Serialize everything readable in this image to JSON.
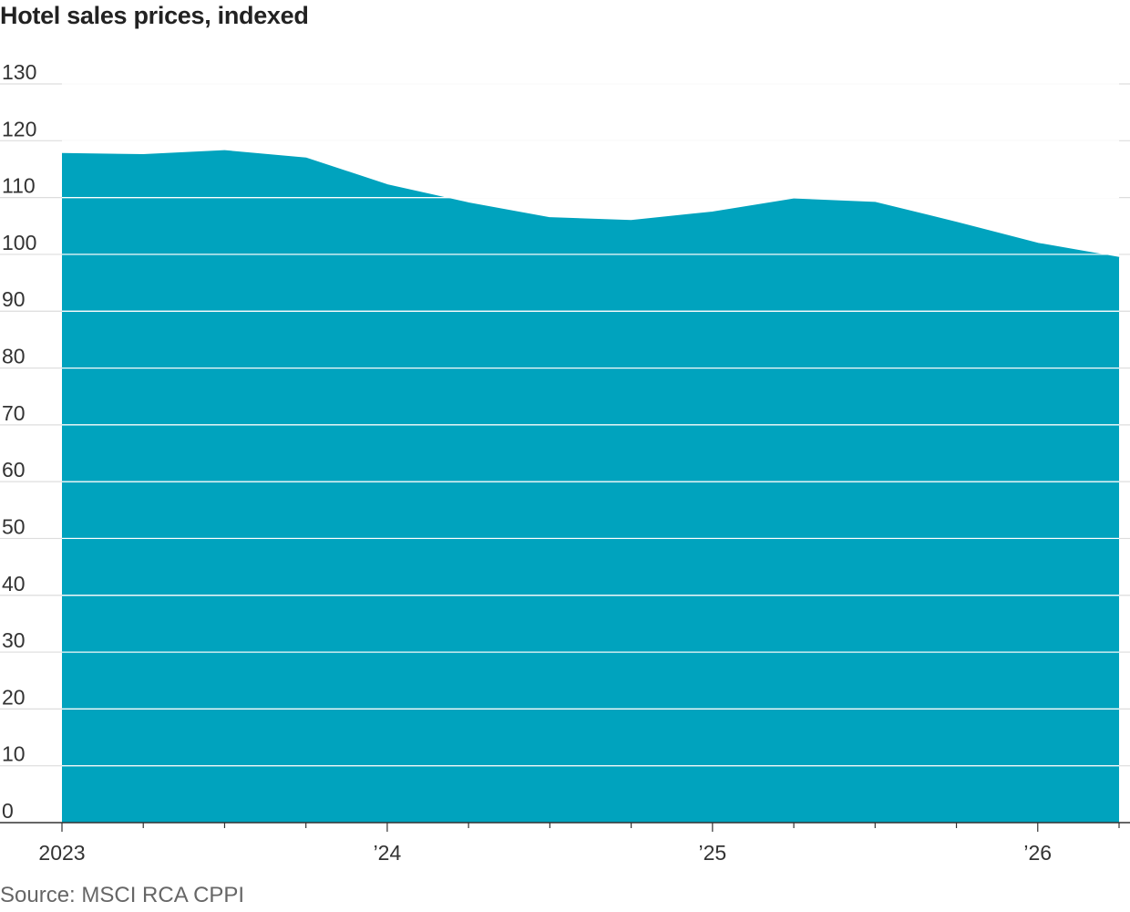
{
  "title": "Hotel sales prices, indexed",
  "source": "Source: MSCI RCA CPPI",
  "chart_data": {
    "type": "area",
    "title": "Hotel sales prices, indexed",
    "xlabel": "",
    "ylabel": "",
    "ylim": [
      0,
      130
    ],
    "yticks": [
      0,
      10,
      20,
      30,
      40,
      50,
      60,
      70,
      80,
      90,
      100,
      110,
      120,
      130
    ],
    "xlim": [
      "2023-01",
      "2026-04"
    ],
    "xtick_labels": [
      {
        "x": "2023-01",
        "label": "2023"
      },
      {
        "x": "2024-01",
        "label": "’24"
      },
      {
        "x": "2025-01",
        "label": "’25"
      },
      {
        "x": "2026-01",
        "label": "’26"
      }
    ],
    "minor_ticks": [
      "2023-04",
      "2023-07",
      "2023-10",
      "2024-04",
      "2024-07",
      "2024-10",
      "2025-04",
      "2025-07",
      "2025-10",
      "2026-04"
    ],
    "grid": true,
    "color": "#00a3be",
    "series": [
      {
        "x": [
          "2023-01",
          "2023-04",
          "2023-07",
          "2023-10",
          "2024-01",
          "2024-04",
          "2024-07",
          "2024-10",
          "2025-01",
          "2025-04",
          "2025-07",
          "2025-10",
          "2026-01",
          "2026-04"
        ],
        "values": [
          117.6,
          117.4,
          118.1,
          116.8,
          112.1,
          108.9,
          106.3,
          105.8,
          107.3,
          109.6,
          109.0,
          105.5,
          101.8,
          99.3
        ]
      }
    ]
  }
}
